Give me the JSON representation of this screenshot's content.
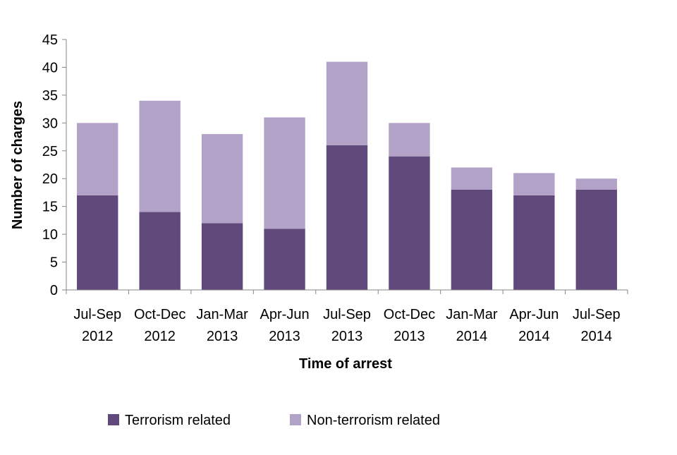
{
  "chart_data": {
    "type": "bar",
    "stacked": true,
    "categories": [
      [
        "Jul-Sep",
        "2012"
      ],
      [
        "Oct-Dec",
        "2012"
      ],
      [
        "Jan-Mar",
        "2013"
      ],
      [
        "Apr-Jun",
        "2013"
      ],
      [
        "Jul-Sep",
        "2013"
      ],
      [
        "Oct-Dec",
        "2013"
      ],
      [
        "Jan-Mar",
        "2014"
      ],
      [
        "Apr-Jun",
        "2014"
      ],
      [
        "Jul-Sep",
        "2014"
      ]
    ],
    "series": [
      {
        "name": "Terrorism related",
        "color": "#604A7B",
        "values": [
          17,
          14,
          12,
          11,
          26,
          24,
          18,
          17,
          18
        ]
      },
      {
        "name": "Non-terrorism related",
        "color": "#B3A2C7",
        "values": [
          13,
          20,
          16,
          20,
          15,
          6,
          4,
          4,
          2
        ]
      }
    ],
    "title": "",
    "xlabel": "Time of arrest",
    "ylabel": "Number of charges",
    "ylim": [
      0,
      45
    ],
    "yticks": [
      0,
      5,
      10,
      15,
      20,
      25,
      30,
      35,
      40,
      45
    ],
    "grid": false,
    "legend_position": "bottom"
  }
}
